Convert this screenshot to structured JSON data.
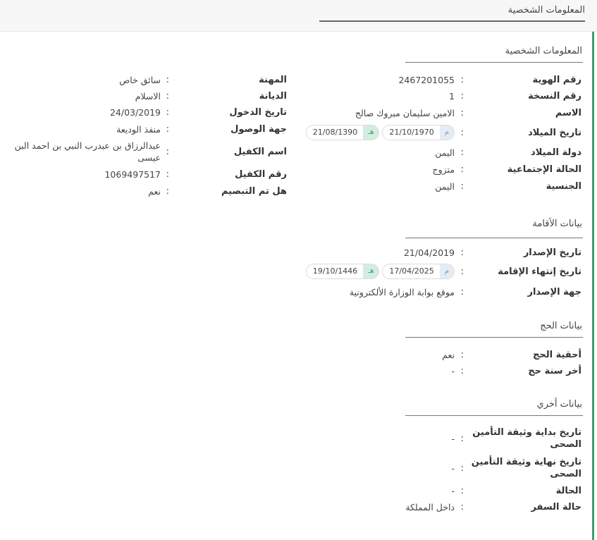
{
  "header": {
    "title": "المعلومات الشخصية"
  },
  "colors": {
    "accent_green": "#3f9f6e",
    "gregorian_badge": "#e5ecf4",
    "hijri_badge": "#d3ece0"
  },
  "sections": {
    "personal": {
      "title": "المعلومات الشخصية",
      "right": [
        {
          "label": "رقم الهوية",
          "value": "2467201055"
        },
        {
          "label": "رقم النسخة",
          "value": "1"
        },
        {
          "label": "الاسم",
          "value": "الامين سليمان مبروك صالح"
        },
        {
          "label": "تاريخ الميلاد",
          "gregorian_mark": "م",
          "gregorian": "21/10/1970",
          "hijri_mark": "هـ",
          "hijri": "21/08/1390"
        },
        {
          "label": "دولة الميلاد",
          "value": "اليمن"
        },
        {
          "label": "الحالة الإجتماعية",
          "value": "متزوج"
        },
        {
          "label": "الجنسية",
          "value": "اليمن"
        }
      ],
      "left": [
        {
          "label": "المهنة",
          "value": "سائق خاص"
        },
        {
          "label": "الديانة",
          "value": "الاسلام"
        },
        {
          "label": "تاريخ الدخول",
          "value": "24/03/2019"
        },
        {
          "label": "جهة الوصول",
          "value": "منفذ الوديعة"
        },
        {
          "label": "اسم الكفيل",
          "value": "عبدالرزاق بن عبدرب النبي بن احمد البن عيسى"
        },
        {
          "label": "رقم الكفيل",
          "value": "1069497517"
        },
        {
          "label": "هل تم التبصيم",
          "value": "نعم"
        }
      ]
    },
    "residence": {
      "title": "بيانات الأقامة",
      "rows": [
        {
          "label": "تاريخ الإصدار",
          "value": "21/04/2019"
        },
        {
          "label": "تاريخ إنتهاء الإقامة",
          "gregorian_mark": "م",
          "gregorian": "17/04/2025",
          "hijri_mark": "هـ",
          "hijri": "19/10/1446"
        },
        {
          "label": "جهة الإصدار",
          "value": "موقع بوابة الوزارة الألكترونية"
        }
      ]
    },
    "hajj": {
      "title": "بيانات الحج",
      "rows": [
        {
          "label": "أحقية الحج",
          "value": "نعم"
        },
        {
          "label": "أخر سنة حج",
          "value": "-"
        }
      ]
    },
    "other": {
      "title": "بيانات أخري",
      "rows": [
        {
          "label": "تاريخ بداية وثيقة التأمين الصحى",
          "value": "-"
        },
        {
          "label": "تاريخ نهاية وثيقة التأمين الصحى",
          "value": "-"
        },
        {
          "label": "الحالة",
          "value": "-"
        },
        {
          "label": "حالة السفر",
          "value": "داخل المملكة"
        }
      ]
    }
  }
}
